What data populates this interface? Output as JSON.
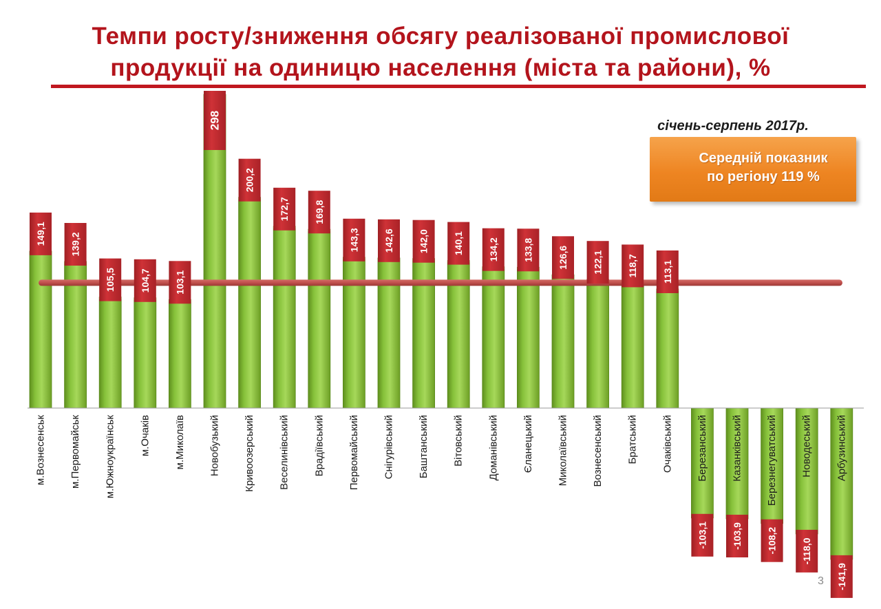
{
  "title": {
    "line1": "Темпи росту/зниження обсягу реалізованої промислової",
    "line2": "продукції на одиницю населення (міста та райони), %"
  },
  "period": "січень-серпень 2017р.",
  "average_box": {
    "line1": "Середній показник",
    "line2": "по регіону 119 %"
  },
  "page_number": "3",
  "colors": {
    "title": "#b3141c",
    "bar_green": "#8cc63e",
    "bar_green_dark": "#5c8a1e",
    "label_red": "#c0272d",
    "average_line": "#c0504d",
    "average_box": "#ee8522"
  },
  "chart_data": {
    "type": "bar",
    "categories": [
      "м.Вознесенськ",
      "м.Первомайськ",
      "м.Южноукраїнськ",
      "м.Очаків",
      "м.Миколаїв",
      "Новобузький",
      "Кривоозерський",
      "Веселинівський",
      "Врадіївський",
      "Первомайський",
      "Снігурівський",
      "Баштанський",
      "Вітовський",
      "Доманівський",
      "Єланецький",
      "Миколаївський",
      "Вознесенський",
      "Братський",
      "Очаківський",
      "Березанський",
      "Казанківський",
      "Березнегуватський",
      "Новодеський",
      "Арбузинський"
    ],
    "values": [
      149.1,
      139.2,
      105.5,
      104.7,
      103.1,
      298,
      200.2,
      172.7,
      169.8,
      143.3,
      142.6,
      142.0,
      140.1,
      134.2,
      133.8,
      126.6,
      122.1,
      118.7,
      113.1,
      -103.1,
      -103.9,
      -108.2,
      -118.0,
      -141.9
    ],
    "value_labels": [
      "149,1",
      "139,2",
      "105,5",
      "104,7",
      "103,1",
      "298",
      "200,2",
      "172,7",
      "169,8",
      "143,3",
      "142,6",
      "142,0",
      "140,1",
      "134,2",
      "133,8",
      "126,6",
      "122,1",
      "118,7",
      "113,1",
      "-103,1",
      "-103,9",
      "-108,2",
      "-118,0",
      "-141,9"
    ],
    "reference_line": 119
  }
}
